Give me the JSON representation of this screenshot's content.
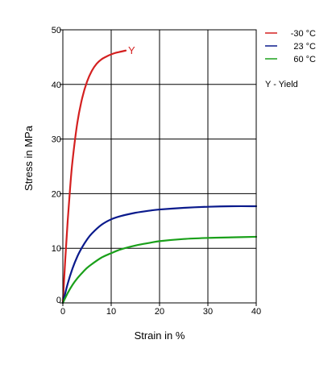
{
  "chart_data": {
    "type": "line",
    "title": "",
    "xlabel": "Strain in %",
    "ylabel": "Stress in MPa",
    "xlim": [
      0,
      40
    ],
    "ylim": [
      0,
      50
    ],
    "x_ticks": [
      0,
      10,
      20,
      30,
      40
    ],
    "y_ticks": [
      0,
      10,
      20,
      30,
      40,
      50
    ],
    "grid": true,
    "legend_position": "top-right, outside plot",
    "series": [
      {
        "name": "-30 °C",
        "color": "#d42020",
        "points": [
          [
            0,
            0
          ],
          [
            0.5,
            8
          ],
          [
            1,
            15
          ],
          [
            1.5,
            21
          ],
          [
            2,
            26
          ],
          [
            3,
            33
          ],
          [
            4,
            37.5
          ],
          [
            5,
            40.5
          ],
          [
            6,
            42.5
          ],
          [
            7,
            43.8
          ],
          [
            8,
            44.6
          ],
          [
            9,
            45.1
          ],
          [
            10,
            45.5
          ],
          [
            11,
            45.8
          ],
          [
            12,
            46
          ],
          [
            13,
            46.2
          ]
        ],
        "end_marker": "Y"
      },
      {
        "name": "23 °C",
        "color": "#0a1a8c",
        "points": [
          [
            0,
            0
          ],
          [
            1,
            3.5
          ],
          [
            2,
            6.3
          ],
          [
            3,
            8.5
          ],
          [
            4,
            10.2
          ],
          [
            5,
            11.6
          ],
          [
            6,
            12.7
          ],
          [
            8,
            14.3
          ],
          [
            10,
            15.3
          ],
          [
            12,
            15.9
          ],
          [
            15,
            16.5
          ],
          [
            18,
            16.9
          ],
          [
            20,
            17.1
          ],
          [
            25,
            17.4
          ],
          [
            30,
            17.6
          ],
          [
            35,
            17.7
          ],
          [
            40,
            17.7
          ]
        ]
      },
      {
        "name": "60 °C",
        "color": "#1aa01a",
        "points": [
          [
            0,
            0
          ],
          [
            1,
            1.8
          ],
          [
            2,
            3.3
          ],
          [
            3,
            4.5
          ],
          [
            4,
            5.5
          ],
          [
            5,
            6.4
          ],
          [
            6,
            7.1
          ],
          [
            8,
            8.3
          ],
          [
            10,
            9.1
          ],
          [
            12,
            9.8
          ],
          [
            15,
            10.5
          ],
          [
            18,
            11
          ],
          [
            20,
            11.3
          ],
          [
            25,
            11.7
          ],
          [
            30,
            11.9
          ],
          [
            35,
            12
          ],
          [
            40,
            12.1
          ]
        ]
      }
    ],
    "annotations": [
      "Y - Yield"
    ]
  }
}
